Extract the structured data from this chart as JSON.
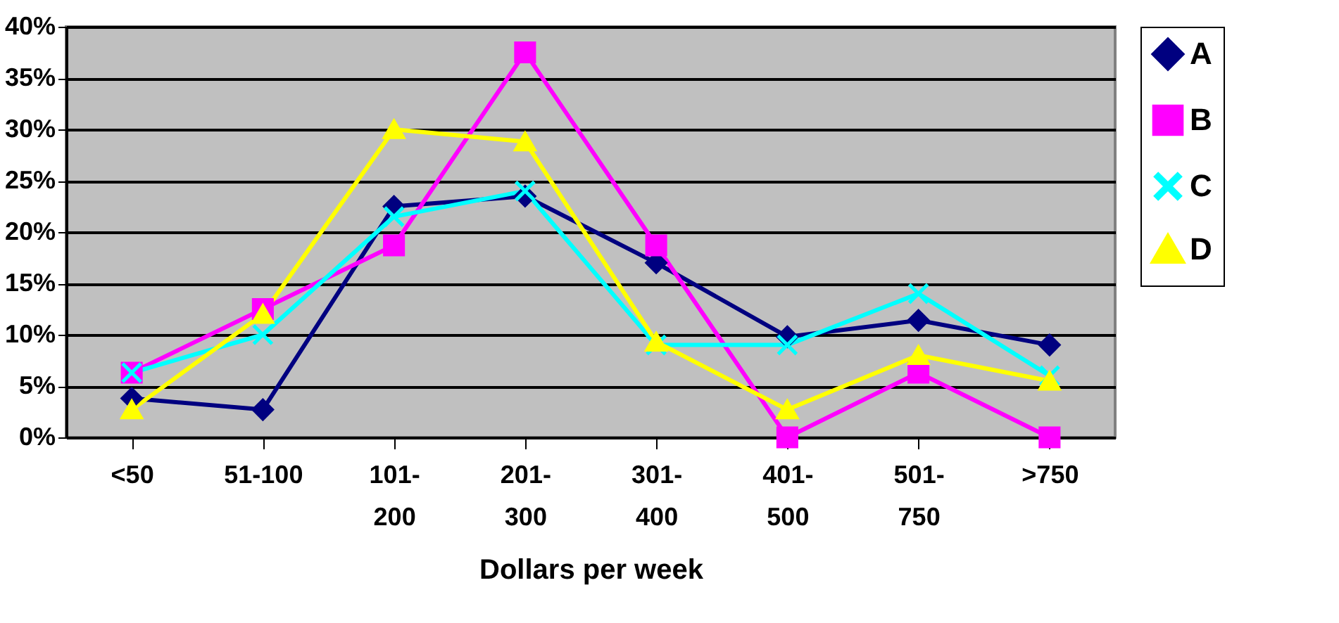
{
  "chart_data": {
    "type": "line",
    "xlabel": "Dollars per week",
    "categories": [
      "<50",
      "51-100",
      "101-\n200",
      "201-\n300",
      "301-\n400",
      "401-\n500",
      "501-\n750",
      ">750"
    ],
    "series": [
      {
        "name": "A",
        "color": "#000080",
        "marker": "diamond",
        "values": [
          3.8,
          2.7,
          22.5,
          23.5,
          17,
          9.8,
          11.4,
          9
        ]
      },
      {
        "name": "B",
        "color": "#ff00ff",
        "marker": "square",
        "values": [
          6.3,
          12.5,
          18.7,
          37.5,
          18.7,
          0,
          6.3,
          0
        ]
      },
      {
        "name": "C",
        "color": "#00ffff",
        "marker": "cross",
        "values": [
          6.3,
          10,
          21.5,
          24,
          9,
          9,
          14,
          6
        ]
      },
      {
        "name": "D",
        "color": "#ffff00",
        "marker": "triangle",
        "values": [
          2.7,
          12,
          30,
          28.8,
          9.3,
          2.7,
          8,
          5.5
        ]
      }
    ],
    "ylim": [
      0,
      40
    ],
    "yticks": [
      {
        "value": 0,
        "label": "0%"
      },
      {
        "value": 5,
        "label": "5%"
      },
      {
        "value": 10,
        "label": "10%"
      },
      {
        "value": 15,
        "label": "15%"
      },
      {
        "value": 20,
        "label": "20%"
      },
      {
        "value": 25,
        "label": "25%"
      },
      {
        "value": 30,
        "label": "30%"
      },
      {
        "value": 35,
        "label": "35%"
      },
      {
        "value": 40,
        "label": "40%"
      }
    ],
    "grid": "y",
    "legend": "right",
    "line_style": "solid"
  }
}
